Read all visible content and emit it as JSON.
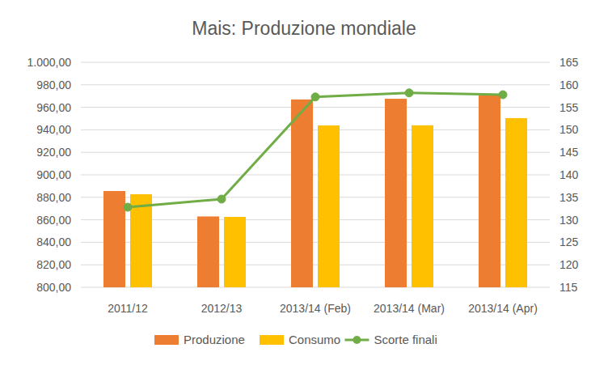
{
  "chart_data": {
    "type": "bar",
    "title": "Mais: Produzione mondiale",
    "categories": [
      "2011/12",
      "2012/13",
      "2013/14 (Feb)",
      "2013/14 (Mar)",
      "2013/14 (Apr)"
    ],
    "series": [
      {
        "name": "Produzione",
        "type": "bar",
        "color": "#ed7d31",
        "values": [
          885.6,
          863,
          967,
          967.6,
          970.5
        ]
      },
      {
        "name": "Consumo",
        "type": "bar",
        "color": "#ffc000",
        "values": [
          882.7,
          862.6,
          943.9,
          944,
          950.4
        ]
      },
      {
        "name": "Scorte finali",
        "type": "line",
        "axis": "y2",
        "color": "#70ad47",
        "marker": "circle",
        "line_style": "solid",
        "values": [
          132.8,
          134.6,
          157.3,
          158.2,
          157.8
        ]
      }
    ],
    "ylim": [
      800,
      1000
    ],
    "yticks": [
      {
        "value": 800,
        "label": "800,00"
      },
      {
        "value": 820,
        "label": "820,00"
      },
      {
        "value": 840,
        "label": "840,00"
      },
      {
        "value": 860,
        "label": "860,00"
      },
      {
        "value": 880,
        "label": "880,00"
      },
      {
        "value": 900,
        "label": "900,00"
      },
      {
        "value": 920,
        "label": "920,00"
      },
      {
        "value": 940,
        "label": "940,00"
      },
      {
        "value": 960,
        "label": "960,00"
      },
      {
        "value": 980,
        "label": "980,00"
      },
      {
        "value": 1000,
        "label": "1.000,00"
      }
    ],
    "y2lim": [
      115,
      165
    ],
    "y2ticks": [
      115,
      120,
      125,
      130,
      135,
      140,
      145,
      150,
      155,
      160,
      165
    ],
    "grid": true,
    "legend": "bottom"
  }
}
